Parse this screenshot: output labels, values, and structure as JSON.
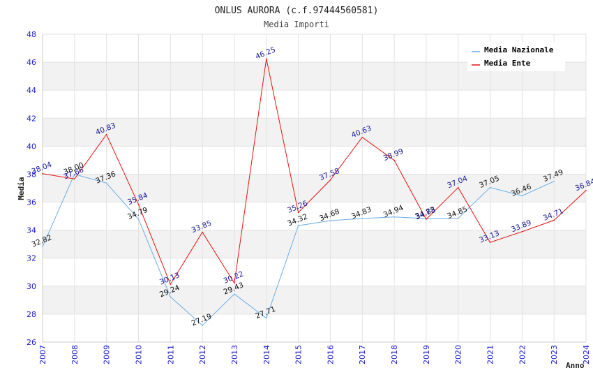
{
  "chart_data": {
    "type": "line",
    "title": "ONLUS AURORA (c.f.97444560581)",
    "subtitle": "Media Importi",
    "xlabel": "Anno",
    "ylabel": "Media",
    "ylim": [
      26,
      48
    ],
    "yticks": [
      "26",
      "28",
      "30",
      "32",
      "34",
      "36",
      "38",
      "40",
      "42",
      "44",
      "46",
      "48"
    ],
    "categories": [
      "2007",
      "2008",
      "2009",
      "2010",
      "2011",
      "2012",
      "2013",
      "2014",
      "2015",
      "2016",
      "2017",
      "2018",
      "2019",
      "2020",
      "2021",
      "2022",
      "2023",
      "2024"
    ],
    "legend_position": "top-right",
    "series": [
      {
        "name": "Media Nazionale",
        "color": "#6aaee8",
        "values": [
          32.82,
          38.0,
          37.36,
          34.79,
          29.24,
          27.19,
          29.43,
          27.71,
          34.32,
          34.68,
          34.83,
          34.94,
          34.83,
          34.85,
          37.05,
          36.46,
          37.49,
          null
        ],
        "labels": [
          "32.82",
          "38.00",
          "37.36",
          "34.79",
          "29.24",
          "27.19",
          "29.43",
          "27.71",
          "34.32",
          "34.68",
          "34.83",
          "34.94",
          "34.83",
          "34.85",
          "37.05",
          "36.46",
          "37.49",
          null
        ]
      },
      {
        "name": "Media Ente",
        "color": "#ee1111",
        "values": [
          38.04,
          37.66,
          40.83,
          35.84,
          30.13,
          33.85,
          30.22,
          46.25,
          35.26,
          37.58,
          40.63,
          38.99,
          34.78,
          37.04,
          33.13,
          33.89,
          34.71,
          36.84
        ],
        "labels": [
          "38.04",
          "37.66",
          "40.83",
          "35.84",
          "30.13",
          "33.85",
          "30.22",
          "46.25",
          "35.26",
          "37.58",
          "40.63",
          "38.99",
          "34.78",
          "37.04",
          "33.13",
          "33.89",
          "34.71",
          "36.84"
        ]
      }
    ]
  },
  "colors": {
    "band": "#f2f2f2",
    "grid": "#e2e2e2",
    "tick_text": "#1a1acc"
  }
}
